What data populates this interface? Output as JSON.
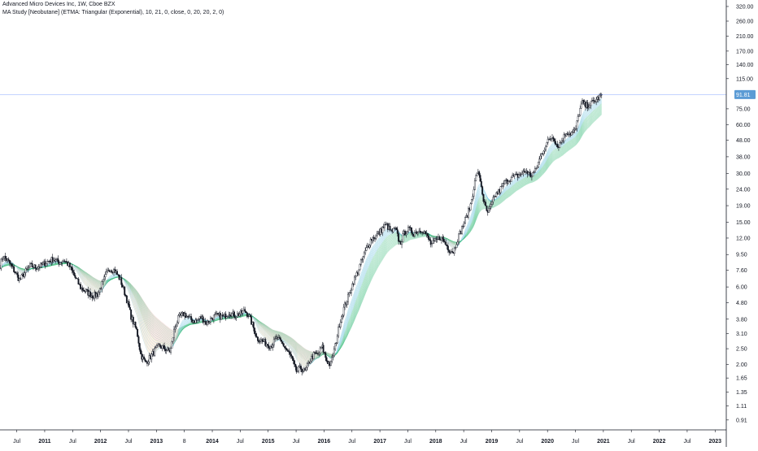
{
  "header": {
    "symbol_line": "Advanced Micro Devices Inc, 1W, Cboe BZX",
    "study_line": "MA Study [Neobutane] (ETMA: Triangular (Exponential), 10, 21, 0, close, 0, 20, 20, 2, 0)"
  },
  "colors": {
    "background": "#ffffff",
    "axis_text": "#131722",
    "up_fill": "#ffffff",
    "candle_outline": "#131722",
    "price_line": "#2962ff",
    "price_label_bg": "#5b9bd5",
    "ribbon_bull_fast": "#4fb6d8",
    "ribbon_bull_slow": "#2bb673",
    "ribbon_bear_fast": "#f2a65a",
    "ribbon_bear_slow": "#e96a6a"
  },
  "chart_data": {
    "type": "candlestick",
    "title": "Advanced Micro Devices Inc, 1W, Cboe BZX",
    "xlabel": "",
    "ylabel": "",
    "y_scale": "log",
    "ylim": [
      0.8,
      335
    ],
    "xlim": [
      2010.2,
      2023.2
    ],
    "last_price": 91.81,
    "last_price_label": "91.81",
    "y_ticks": [
      {
        "value": 320,
        "label": "320.00"
      },
      {
        "value": 260,
        "label": "260.00"
      },
      {
        "value": 210,
        "label": "210.00"
      },
      {
        "value": 170,
        "label": "170.00"
      },
      {
        "value": 140,
        "label": "140.00"
      },
      {
        "value": 115,
        "label": "115.00"
      },
      {
        "value": 75,
        "label": "75.00"
      },
      {
        "value": 60,
        "label": "60.00"
      },
      {
        "value": 48,
        "label": "48.00"
      },
      {
        "value": 38,
        "label": "38.00"
      },
      {
        "value": 30,
        "label": "30.00"
      },
      {
        "value": 24,
        "label": "24.00"
      },
      {
        "value": 19,
        "label": "19.00"
      },
      {
        "value": 15,
        "label": "15.00"
      },
      {
        "value": 12,
        "label": "12.00"
      },
      {
        "value": 9.5,
        "label": "9.50"
      },
      {
        "value": 7.6,
        "label": "7.60"
      },
      {
        "value": 6.0,
        "label": "6.00"
      },
      {
        "value": 4.8,
        "label": "4.80"
      },
      {
        "value": 3.8,
        "label": "3.80"
      },
      {
        "value": 3.1,
        "label": "3.10"
      },
      {
        "value": 2.5,
        "label": "2.50"
      },
      {
        "value": 2.0,
        "label": "2.00"
      },
      {
        "value": 1.65,
        "label": "1.65"
      },
      {
        "value": 1.35,
        "label": "1.35"
      },
      {
        "value": 1.11,
        "label": "1.11"
      },
      {
        "value": 0.91,
        "label": "0.91"
      }
    ],
    "x_ticks": [
      {
        "t": 2010.5,
        "label": "Jul",
        "bold": false
      },
      {
        "t": 2011.0,
        "label": "2011",
        "bold": true
      },
      {
        "t": 2011.5,
        "label": "Jul",
        "bold": false
      },
      {
        "t": 2012.0,
        "label": "2012",
        "bold": true
      },
      {
        "t": 2012.5,
        "label": "Jul",
        "bold": false
      },
      {
        "t": 2013.0,
        "label": "2013",
        "bold": true
      },
      {
        "t": 2013.5,
        "label": "8",
        "bold": false
      },
      {
        "t": 2014.0,
        "label": "2014",
        "bold": true
      },
      {
        "t": 2014.5,
        "label": "Jul",
        "bold": false
      },
      {
        "t": 2015.0,
        "label": "2015",
        "bold": true
      },
      {
        "t": 2015.5,
        "label": "Jul",
        "bold": false
      },
      {
        "t": 2016.0,
        "label": "2016",
        "bold": true
      },
      {
        "t": 2016.5,
        "label": "Jul",
        "bold": false
      },
      {
        "t": 2017.0,
        "label": "2017",
        "bold": true
      },
      {
        "t": 2017.5,
        "label": "Jul",
        "bold": false
      },
      {
        "t": 2018.0,
        "label": "2018",
        "bold": true
      },
      {
        "t": 2018.5,
        "label": "Jul",
        "bold": false
      },
      {
        "t": 2019.0,
        "label": "2019",
        "bold": true
      },
      {
        "t": 2019.5,
        "label": "Jul",
        "bold": false
      },
      {
        "t": 2020.0,
        "label": "2020",
        "bold": true
      },
      {
        "t": 2020.5,
        "label": "Jul",
        "bold": false
      },
      {
        "t": 2021.0,
        "label": "2021",
        "bold": true
      },
      {
        "t": 2021.5,
        "label": "Jul",
        "bold": false
      },
      {
        "t": 2022.0,
        "label": "2022",
        "bold": true
      },
      {
        "t": 2022.5,
        "label": "Jul",
        "bold": false
      },
      {
        "t": 2023.0,
        "label": "2023",
        "bold": true
      }
    ],
    "price_path": [
      [
        2010.2,
        8.2
      ],
      [
        2010.25,
        9.3
      ],
      [
        2010.35,
        8.6
      ],
      [
        2010.45,
        7.6
      ],
      [
        2010.55,
        6.6
      ],
      [
        2010.65,
        7.4
      ],
      [
        2010.75,
        8.1
      ],
      [
        2010.85,
        7.9
      ],
      [
        2010.95,
        8.2
      ],
      [
        2011.05,
        8.6
      ],
      [
        2011.15,
        8.9
      ],
      [
        2011.25,
        8.5
      ],
      [
        2011.35,
        8.8
      ],
      [
        2011.45,
        8.0
      ],
      [
        2011.55,
        6.8
      ],
      [
        2011.65,
        5.9
      ],
      [
        2011.75,
        5.6
      ],
      [
        2011.85,
        5.3
      ],
      [
        2011.95,
        5.4
      ],
      [
        2012.05,
        6.5
      ],
      [
        2012.15,
        7.8
      ],
      [
        2012.25,
        7.6
      ],
      [
        2012.35,
        6.7
      ],
      [
        2012.45,
        5.3
      ],
      [
        2012.55,
        3.9
      ],
      [
        2012.65,
        3.2
      ],
      [
        2012.72,
        2.3
      ],
      [
        2012.8,
        2.05
      ],
      [
        2012.88,
        2.2
      ],
      [
        2012.96,
        2.4
      ],
      [
        2013.05,
        2.6
      ],
      [
        2013.15,
        2.5
      ],
      [
        2013.25,
        2.4
      ],
      [
        2013.32,
        3.3
      ],
      [
        2013.4,
        3.9
      ],
      [
        2013.5,
        4.1
      ],
      [
        2013.6,
        3.8
      ],
      [
        2013.7,
        3.7
      ],
      [
        2013.8,
        3.9
      ],
      [
        2013.9,
        3.6
      ],
      [
        2014.0,
        3.9
      ],
      [
        2014.1,
        4.0
      ],
      [
        2014.2,
        3.9
      ],
      [
        2014.3,
        4.2
      ],
      [
        2014.4,
        4.0
      ],
      [
        2014.5,
        4.1
      ],
      [
        2014.58,
        4.3
      ],
      [
        2014.65,
        4.0
      ],
      [
        2014.72,
        3.5
      ],
      [
        2014.8,
        2.9
      ],
      [
        2014.88,
        2.8
      ],
      [
        2014.96,
        2.7
      ],
      [
        2015.05,
        2.6
      ],
      [
        2015.15,
        2.9
      ],
      [
        2015.25,
        2.7
      ],
      [
        2015.35,
        2.4
      ],
      [
        2015.42,
        2.2
      ],
      [
        2015.5,
        1.8
      ],
      [
        2015.58,
        1.9
      ],
      [
        2015.66,
        1.8
      ],
      [
        2015.74,
        2.1
      ],
      [
        2015.82,
        2.3
      ],
      [
        2015.9,
        2.3
      ],
      [
        2015.96,
        2.6
      ],
      [
        2016.05,
        2.1
      ],
      [
        2016.12,
        2.0
      ],
      [
        2016.2,
        2.6
      ],
      [
        2016.28,
        3.6
      ],
      [
        2016.36,
        4.5
      ],
      [
        2016.44,
        5.3
      ],
      [
        2016.52,
        6.4
      ],
      [
        2016.6,
        7.4
      ],
      [
        2016.68,
        8.8
      ],
      [
        2016.76,
        10.3
      ],
      [
        2016.84,
        11.8
      ],
      [
        2016.92,
        12.3
      ],
      [
        2017.0,
        13.1
      ],
      [
        2017.06,
        14.0
      ],
      [
        2017.12,
        14.4
      ],
      [
        2017.2,
        13.1
      ],
      [
        2017.28,
        13.6
      ],
      [
        2017.36,
        11.0
      ],
      [
        2017.44,
        13.0
      ],
      [
        2017.52,
        13.6
      ],
      [
        2017.6,
        12.9
      ],
      [
        2017.68,
        13.2
      ],
      [
        2017.76,
        13.6
      ],
      [
        2017.84,
        12.4
      ],
      [
        2017.92,
        10.9
      ],
      [
        2018.0,
        11.5
      ],
      [
        2018.08,
        12.2
      ],
      [
        2018.16,
        11.3
      ],
      [
        2018.24,
        10.2
      ],
      [
        2018.32,
        9.9
      ],
      [
        2018.38,
        11.6
      ],
      [
        2018.46,
        13.6
      ],
      [
        2018.54,
        15.9
      ],
      [
        2018.62,
        19.0
      ],
      [
        2018.68,
        24.5
      ],
      [
        2018.74,
        31.0
      ],
      [
        2018.8,
        27.0
      ],
      [
        2018.86,
        20.0
      ],
      [
        2018.92,
        17.0
      ],
      [
        2018.98,
        18.5
      ],
      [
        2019.06,
        22.0
      ],
      [
        2019.14,
        23.5
      ],
      [
        2019.22,
        26.0
      ],
      [
        2019.3,
        27.5
      ],
      [
        2019.38,
        28.5
      ],
      [
        2019.46,
        29.0
      ],
      [
        2019.54,
        30.0
      ],
      [
        2019.62,
        31.0
      ],
      [
        2019.7,
        29.0
      ],
      [
        2019.78,
        31.0
      ],
      [
        2019.86,
        37.0
      ],
      [
        2019.94,
        43.0
      ],
      [
        2020.02,
        48.0
      ],
      [
        2020.1,
        51.0
      ],
      [
        2020.18,
        44.0
      ],
      [
        2020.26,
        48.0
      ],
      [
        2020.34,
        54.0
      ],
      [
        2020.42,
        53.0
      ],
      [
        2020.5,
        55.0
      ],
      [
        2020.56,
        70.0
      ],
      [
        2020.62,
        82.0
      ],
      [
        2020.68,
        78.0
      ],
      [
        2020.76,
        80.0
      ],
      [
        2020.84,
        84.0
      ],
      [
        2020.92,
        88.0
      ],
      [
        2020.98,
        91.81
      ]
    ],
    "ribbon_bands": {
      "fast_period": 10,
      "slow_period": 21,
      "band_count": 20,
      "step": 2
    }
  }
}
